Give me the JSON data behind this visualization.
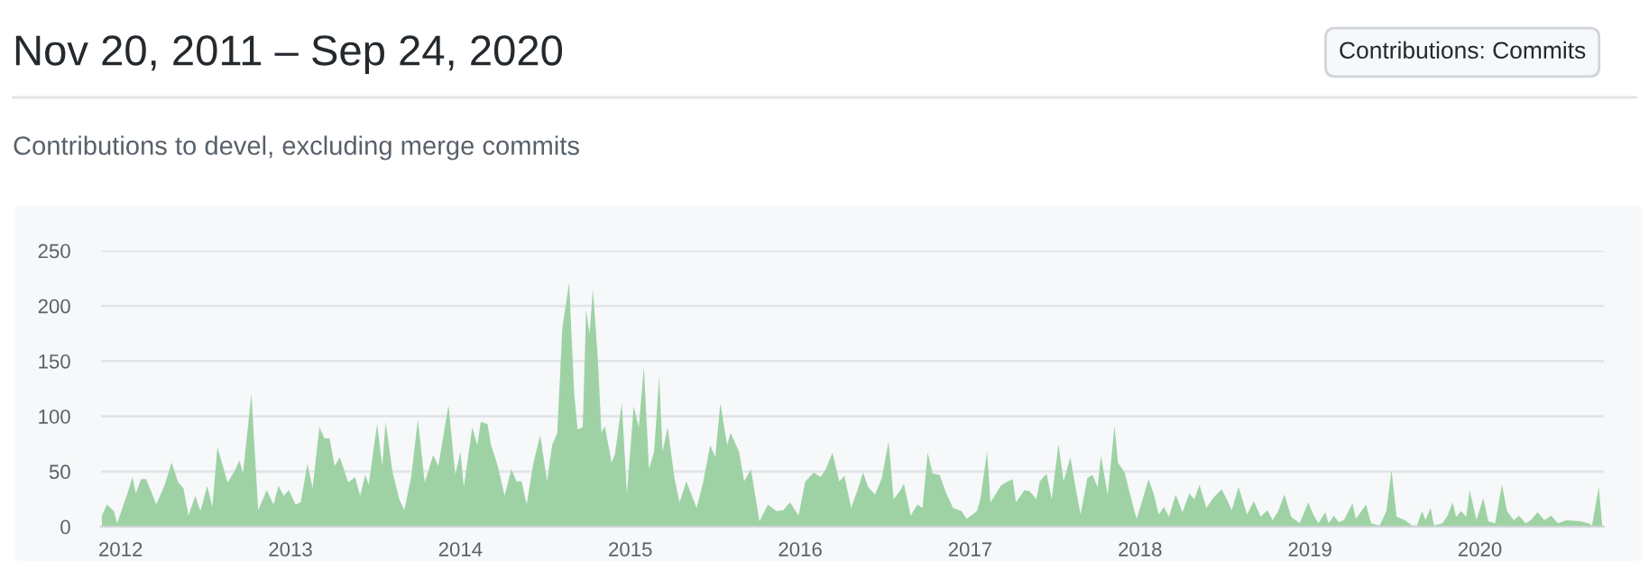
{
  "chart_data": {
    "type": "area",
    "title": "Nov 20, 2011 – Sep 24, 2020",
    "subtitle": "Contributions to devel, excluding merge commits",
    "annotations": [
      "Contributions: Commits"
    ],
    "x": [
      2011.89,
      2011.92,
      2011.96,
      2011.98,
      2012.04,
      2012.07,
      2012.09,
      2012.12,
      2012.15,
      2012.18,
      2012.21,
      2012.26,
      2012.3,
      2012.34,
      2012.37,
      2012.4,
      2012.44,
      2012.47,
      2012.51,
      2012.54,
      2012.57,
      2012.63,
      2012.67,
      2012.7,
      2012.72,
      2012.77,
      2012.81,
      2012.86,
      2012.9,
      2012.93,
      2012.96,
      2012.99,
      2013.03,
      2013.06,
      2013.1,
      2013.13,
      2013.17,
      2013.2,
      2013.23,
      2013.26,
      2013.29,
      2013.34,
      2013.38,
      2013.41,
      2013.44,
      2013.46,
      2013.51,
      2013.54,
      2013.56,
      2013.6,
      2013.64,
      2013.67,
      2013.71,
      2013.75,
      2013.79,
      2013.84,
      2013.87,
      2013.93,
      2013.97,
      2014.0,
      2014.02,
      2014.07,
      2014.1,
      2014.12,
      2014.16,
      2014.18,
      2014.22,
      2014.26,
      2014.3,
      2014.33,
      2014.36,
      2014.39,
      2014.43,
      2014.47,
      2014.51,
      2014.54,
      2014.57,
      2014.6,
      2014.64,
      2014.67,
      2014.69,
      2014.72,
      2014.74,
      2014.76,
      2014.78,
      2014.81,
      2014.83,
      2014.85,
      2014.89,
      2014.91,
      2014.95,
      2014.98,
      2015.02,
      2015.05,
      2015.08,
      2015.11,
      2015.14,
      2015.17,
      2015.19,
      2015.22,
      2015.26,
      2015.29,
      2015.33,
      2015.39,
      2015.43,
      2015.47,
      2015.5,
      2015.53,
      2015.57,
      2015.59,
      2015.64,
      2015.67,
      2015.71,
      2015.76,
      2015.81,
      2015.86,
      2015.9,
      2015.94,
      2015.99,
      2016.03,
      2016.08,
      2016.12,
      2016.15,
      2016.19,
      2016.23,
      2016.26,
      2016.3,
      2016.33,
      2016.37,
      2016.4,
      2016.44,
      2016.48,
      2016.52,
      2016.55,
      2016.59,
      2016.61,
      2016.65,
      2016.69,
      2016.72,
      2016.75,
      2016.78,
      2016.82,
      2016.86,
      2016.9,
      2016.95,
      2016.98,
      2017.04,
      2017.06,
      2017.1,
      2017.12,
      2017.18,
      2017.21,
      2017.25,
      2017.27,
      2017.32,
      2017.35,
      2017.39,
      2017.41,
      2017.45,
      2017.48,
      2017.52,
      2017.55,
      2017.59,
      2017.62,
      2017.65,
      2017.69,
      2017.72,
      2017.75,
      2017.77,
      2017.81,
      2017.85,
      2017.87,
      2017.91,
      2017.94,
      2017.98,
      2018.0,
      2018.05,
      2018.08,
      2018.11,
      2018.14,
      2018.17,
      2018.21,
      2018.25,
      2018.29,
      2018.32,
      2018.35,
      2018.39,
      2018.43,
      2018.48,
      2018.51,
      2018.54,
      2018.58,
      2018.63,
      2018.67,
      2018.71,
      2018.75,
      2018.78,
      2018.81,
      2018.85,
      2018.89,
      2018.94,
      2018.99,
      2019.02,
      2019.05,
      2019.09,
      2019.11,
      2019.14,
      2019.17,
      2019.2,
      2019.25,
      2019.27,
      2019.33,
      2019.36,
      2019.41,
      2019.45,
      2019.48,
      2019.51,
      2019.56,
      2019.6,
      2019.63,
      2019.66,
      2019.68,
      2019.71,
      2019.73,
      2019.78,
      2019.81,
      2019.84,
      2019.86,
      2019.89,
      2019.92,
      2019.94,
      2019.98,
      2020.02,
      2020.05,
      2020.09,
      2020.13,
      2020.16,
      2020.2,
      2020.23,
      2020.27,
      2020.3,
      2020.34,
      2020.38,
      2020.42,
      2020.46,
      2020.51,
      2020.59,
      2020.64,
      2020.66,
      2020.7,
      2020.72
    ],
    "series": [
      {
        "color": "#9ed2a4",
        "values": [
          10,
          20,
          14,
          3,
          30,
          45,
          30,
          43,
          43,
          32,
          20,
          38,
          58,
          40,
          35,
          10,
          28,
          14,
          37,
          18,
          72,
          40,
          50,
          60,
          48,
          120,
          15,
          33,
          20,
          37,
          28,
          33,
          20,
          22,
          57,
          35,
          90,
          80,
          80,
          55,
          63,
          40,
          45,
          28,
          47,
          38,
          93,
          55,
          95,
          50,
          25,
          15,
          45,
          97,
          40,
          65,
          55,
          110,
          47,
          68,
          36,
          90,
          74,
          95,
          93,
          74,
          55,
          28,
          52,
          41,
          41,
          20,
          58,
          83,
          41,
          74,
          85,
          180,
          221,
          120,
          88,
          90,
          196,
          175,
          215,
          150,
          85,
          91,
          58,
          66,
          112,
          30,
          109,
          90,
          145,
          52,
          68,
          136,
          68,
          90,
          44,
          22,
          41,
          17,
          41,
          74,
          63,
          112,
          74,
          85,
          68,
          41,
          52,
          5,
          20,
          14,
          15,
          22,
          10,
          41,
          49,
          45,
          52,
          67,
          41,
          46,
          17,
          30,
          49,
          36,
          29,
          44,
          77,
          25,
          33,
          39,
          10,
          20,
          17,
          67,
          48,
          47,
          30,
          17,
          14,
          7,
          14,
          25,
          68,
          22,
          37,
          40,
          43,
          22,
          33,
          32,
          25,
          41,
          48,
          25,
          75,
          41,
          63,
          36,
          11,
          44,
          47,
          36,
          64,
          29,
          91,
          58,
          49,
          30,
          7,
          17,
          43,
          30,
          11,
          18,
          9,
          29,
          13,
          30,
          25,
          38,
          17,
          26,
          34,
          25,
          15,
          36,
          11,
          23,
          9,
          15,
          6,
          13,
          29,
          9,
          3,
          22,
          11,
          3,
          13,
          3,
          10,
          4,
          6,
          21,
          7,
          20,
          3,
          1,
          14,
          51,
          9,
          6,
          1,
          1,
          14,
          6,
          17,
          1,
          3,
          10,
          22,
          9,
          14,
          9,
          33,
          6,
          26,
          5,
          3,
          38,
          14,
          6,
          10,
          3,
          6,
          13,
          6,
          10,
          3,
          6,
          5,
          3,
          1,
          36,
          1
        ]
      }
    ],
    "xlim": [
      2011.885,
      2020.73
    ],
    "xticks": [
      2012,
      2013,
      2014,
      2015,
      2016,
      2017,
      2018,
      2019,
      2020
    ],
    "ylim": [
      0,
      250
    ],
    "yticks": [
      0,
      50,
      100,
      150,
      200,
      250
    ],
    "grid": "y",
    "legend": false
  }
}
